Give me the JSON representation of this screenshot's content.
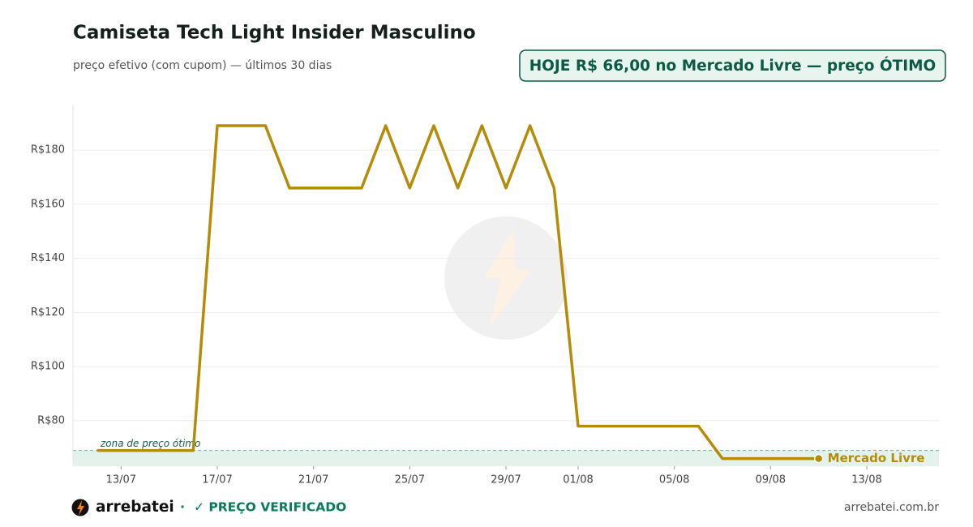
{
  "chart_data": {
    "type": "line",
    "title": "Camiseta Tech Light Insider Masculino",
    "subtitle": "preço efetivo (com cupom) — últimos 30 dias",
    "badge": "HOJE R$ 66,00 no Mercado Livre — preço ÓTIMO",
    "x": [
      "12/07",
      "13/07",
      "14/07",
      "15/07",
      "16/07",
      "17/07",
      "18/07",
      "19/07",
      "20/07",
      "21/07",
      "22/07",
      "23/07",
      "24/07",
      "25/07",
      "26/07",
      "27/07",
      "28/07",
      "29/07",
      "30/07",
      "31/07",
      "01/08",
      "02/08",
      "03/08",
      "04/08",
      "05/08",
      "06/08",
      "07/08",
      "08/08",
      "09/08",
      "10/08",
      "11/08"
    ],
    "series": [
      {
        "name": "Mercado Livre",
        "color": "#b58c0a",
        "values": [
          69,
          69,
          69,
          69,
          69,
          189,
          189,
          189,
          166,
          166,
          166,
          166,
          189,
          166,
          189,
          166,
          189,
          166,
          189,
          166,
          78,
          78,
          78,
          78,
          78,
          78,
          66,
          66,
          66,
          66,
          66
        ]
      }
    ],
    "xlim": [
      "11/07",
      "16/08"
    ],
    "xticks": [
      "13/07",
      "17/07",
      "21/07",
      "25/07",
      "29/07",
      "01/08",
      "05/08",
      "09/08",
      "13/08"
    ],
    "ylim": [
      63.2,
      196.5
    ],
    "yticks": [
      {
        "value": 80,
        "label": "R$80"
      },
      {
        "value": 100,
        "label": "R$100"
      },
      {
        "value": 120,
        "label": "R$120"
      },
      {
        "value": 140,
        "label": "R$140"
      },
      {
        "value": 160,
        "label": "R$160"
      },
      {
        "value": 180,
        "label": "R$180"
      }
    ],
    "grid": true,
    "zone": {
      "label": "zona de preço ótimo",
      "value": 69,
      "color": "#e3f2ea"
    },
    "footer": {
      "brand": "arrebatei",
      "separator": "·",
      "verified": "✓ PREÇO VERIFICADO",
      "site": "arrebatei.com.br"
    }
  }
}
